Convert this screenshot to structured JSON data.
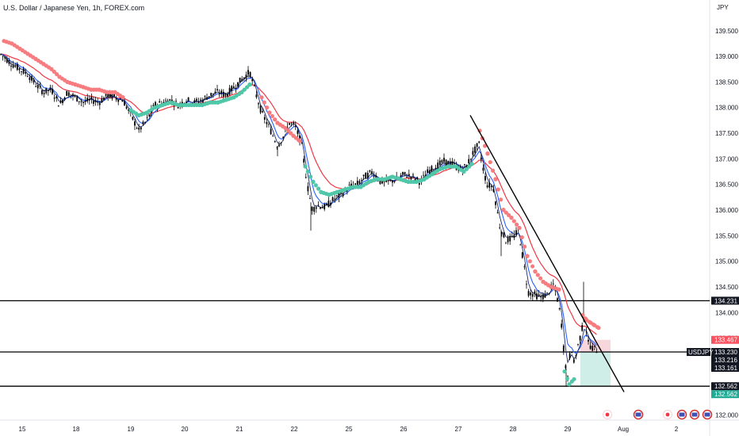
{
  "header": {
    "title": "U.S. Dollar / Japanese Yen, 1h, FOREX.com"
  },
  "chart_data": {
    "type": "candlestick",
    "title": "U.S. Dollar / Japanese Yen, 1h, FOREX.com",
    "symbol": "USDJPY",
    "timeframe": "1h",
    "source": "FOREX.com",
    "currency_label": "JPY",
    "ylim": [
      131.9,
      140.1
    ],
    "y_ticks": [
      "132.000",
      "132.500",
      "133.000",
      "133.500",
      "134.000",
      "134.500",
      "135.000",
      "135.500",
      "136.000",
      "136.500",
      "137.000",
      "137.500",
      "138.000",
      "138.500",
      "139.000",
      "139.500"
    ],
    "x_ticks": [
      "15",
      "18",
      "19",
      "20",
      "21",
      "22",
      "25",
      "26",
      "27",
      "28",
      "29",
      "Aug",
      "2"
    ],
    "last_price": 133.23,
    "horizontal_levels": [
      134.231,
      133.23,
      132.562
    ],
    "price_tags": [
      {
        "label": "",
        "value": "134.231",
        "kind": "line"
      },
      {
        "label": "",
        "value": "133.467",
        "kind": "stop"
      },
      {
        "label": "USDJPY",
        "value": "133.230",
        "kind": "last"
      },
      {
        "label": "",
        "value": "133.216",
        "kind": "dark"
      },
      {
        "label": "",
        "value": "133.161",
        "kind": "dark"
      },
      {
        "label": "",
        "value": "132.562",
        "kind": "line"
      },
      {
        "label": "",
        "value": "132.562",
        "kind": "target"
      }
    ],
    "price_path": [
      [
        0,
        139.05
      ],
      [
        8,
        138.95
      ],
      [
        15,
        138.85
      ],
      [
        25,
        138.75
      ],
      [
        35,
        138.65
      ],
      [
        45,
        138.45
      ],
      [
        55,
        138.3
      ],
      [
        65,
        138.35
      ],
      [
        75,
        138.05
      ],
      [
        85,
        138.3
      ],
      [
        95,
        138.2
      ],
      [
        105,
        138.1
      ],
      [
        115,
        138.15
      ],
      [
        125,
        138.1
      ],
      [
        135,
        138.25
      ],
      [
        145,
        138.2
      ],
      [
        155,
        138.15
      ],
      [
        165,
        137.85
      ],
      [
        175,
        137.55
      ],
      [
        185,
        137.75
      ],
      [
        195,
        138.05
      ],
      [
        205,
        138.1
      ],
      [
        215,
        138.15
      ],
      [
        225,
        138.05
      ],
      [
        235,
        138.15
      ],
      [
        245,
        138.1
      ],
      [
        255,
        138.15
      ],
      [
        265,
        138.25
      ],
      [
        275,
        138.3
      ],
      [
        285,
        138.25
      ],
      [
        295,
        138.4
      ],
      [
        305,
        138.55
      ],
      [
        315,
        138.7
      ],
      [
        322,
        138.3
      ],
      [
        330,
        137.9
      ],
      [
        340,
        137.6
      ],
      [
        350,
        137.25
      ],
      [
        358,
        137.45
      ],
      [
        365,
        137.7
      ],
      [
        372,
        137.65
      ],
      [
        380,
        137.3
      ],
      [
        388,
        136.45
      ],
      [
        394,
        136.0
      ],
      [
        400,
        136.1
      ],
      [
        410,
        136.05
      ],
      [
        420,
        136.2
      ],
      [
        430,
        136.3
      ],
      [
        440,
        136.45
      ],
      [
        450,
        136.5
      ],
      [
        460,
        136.65
      ],
      [
        470,
        136.75
      ],
      [
        480,
        136.55
      ],
      [
        490,
        136.55
      ],
      [
        500,
        136.6
      ],
      [
        510,
        136.7
      ],
      [
        520,
        136.65
      ],
      [
        530,
        136.55
      ],
      [
        540,
        136.75
      ],
      [
        550,
        136.85
      ],
      [
        560,
        136.95
      ],
      [
        570,
        136.9
      ],
      [
        580,
        136.8
      ],
      [
        588,
        136.85
      ],
      [
        596,
        137.1
      ],
      [
        604,
        137.3
      ],
      [
        608,
        136.9
      ],
      [
        614,
        136.5
      ],
      [
        622,
        136.45
      ],
      [
        630,
        135.7
      ],
      [
        638,
        135.4
      ],
      [
        646,
        135.45
      ],
      [
        654,
        135.6
      ],
      [
        660,
        135.0
      ],
      [
        666,
        134.4
      ],
      [
        674,
        134.35
      ],
      [
        682,
        134.3
      ],
      [
        690,
        134.35
      ],
      [
        698,
        134.55
      ],
      [
        704,
        134.2
      ],
      [
        708,
        133.8
      ],
      [
        712,
        133.1
      ],
      [
        716,
        132.7
      ],
      [
        720,
        133.4
      ],
      [
        724,
        133.0
      ],
      [
        728,
        133.3
      ],
      [
        733,
        133.6
      ],
      [
        737,
        133.9
      ],
      [
        742,
        133.4
      ],
      [
        748,
        133.3
      ],
      [
        755,
        133.25
      ]
    ],
    "hull_dots_red": [
      [
        5,
        139.3
      ],
      [
        15,
        139.25
      ],
      [
        25,
        139.15
      ],
      [
        35,
        139.05
      ],
      [
        45,
        138.95
      ],
      [
        55,
        138.85
      ],
      [
        65,
        138.75
      ],
      [
        75,
        138.6
      ],
      [
        85,
        138.5
      ],
      [
        95,
        138.45
      ],
      [
        105,
        138.4
      ],
      [
        115,
        138.35
      ],
      [
        125,
        138.35
      ],
      [
        135,
        138.3
      ],
      [
        145,
        138.3
      ],
      [
        155,
        138.2
      ]
    ],
    "hull_dots_green": [
      [
        165,
        137.95
      ],
      [
        175,
        137.85
      ],
      [
        185,
        137.9
      ],
      [
        195,
        138.0
      ],
      [
        205,
        138.05
      ],
      [
        215,
        138.1
      ],
      [
        225,
        138.05
      ],
      [
        235,
        138.05
      ],
      [
        245,
        138.05
      ],
      [
        255,
        138.05
      ],
      [
        265,
        138.1
      ],
      [
        275,
        138.1
      ],
      [
        285,
        138.15
      ],
      [
        295,
        138.2
      ],
      [
        305,
        138.3
      ],
      [
        315,
        138.45
      ]
    ],
    "hull_dots_red2": [
      [
        330,
        138.2
      ],
      [
        340,
        137.9
      ],
      [
        350,
        137.7
      ],
      [
        360,
        137.6
      ],
      [
        370,
        137.45
      ],
      [
        378,
        137.35
      ]
    ],
    "hull_dots_green2": [
      [
        385,
        136.85
      ],
      [
        395,
        136.55
      ],
      [
        405,
        136.35
      ],
      [
        415,
        136.3
      ],
      [
        425,
        136.35
      ],
      [
        435,
        136.4
      ],
      [
        445,
        136.45
      ],
      [
        455,
        136.45
      ],
      [
        465,
        136.55
      ],
      [
        475,
        136.6
      ],
      [
        485,
        136.6
      ],
      [
        495,
        136.65
      ],
      [
        505,
        136.6
      ],
      [
        515,
        136.55
      ],
      [
        525,
        136.55
      ],
      [
        535,
        136.6
      ],
      [
        545,
        136.7
      ],
      [
        555,
        136.8
      ],
      [
        565,
        136.85
      ],
      [
        575,
        136.85
      ],
      [
        585,
        136.75
      ],
      [
        595,
        136.9
      ]
    ],
    "hull_dots_red3": [
      [
        605,
        137.55
      ],
      [
        615,
        137.1
      ],
      [
        625,
        136.6
      ],
      [
        635,
        136.0
      ],
      [
        645,
        135.85
      ],
      [
        655,
        135.65
      ],
      [
        665,
        135.1
      ],
      [
        675,
        134.8
      ],
      [
        685,
        134.6
      ],
      [
        695,
        134.5
      ],
      [
        705,
        134.45
      ]
    ],
    "hull_dots_green3": [
      [
        712,
        132.85
      ],
      [
        718,
        132.6
      ],
      [
        724,
        132.7
      ]
    ],
    "hull_dots_red4": [
      [
        735,
        133.95
      ],
      [
        740,
        133.85
      ],
      [
        745,
        133.8
      ],
      [
        750,
        133.75
      ],
      [
        755,
        133.7
      ]
    ],
    "trendline": [
      [
        593,
        137.85
      ],
      [
        787,
        132.45
      ]
    ],
    "position_box": {
      "x1": 732,
      "x2": 770,
      "entry": 133.23,
      "stop": 133.467,
      "target": 132.562
    }
  }
}
